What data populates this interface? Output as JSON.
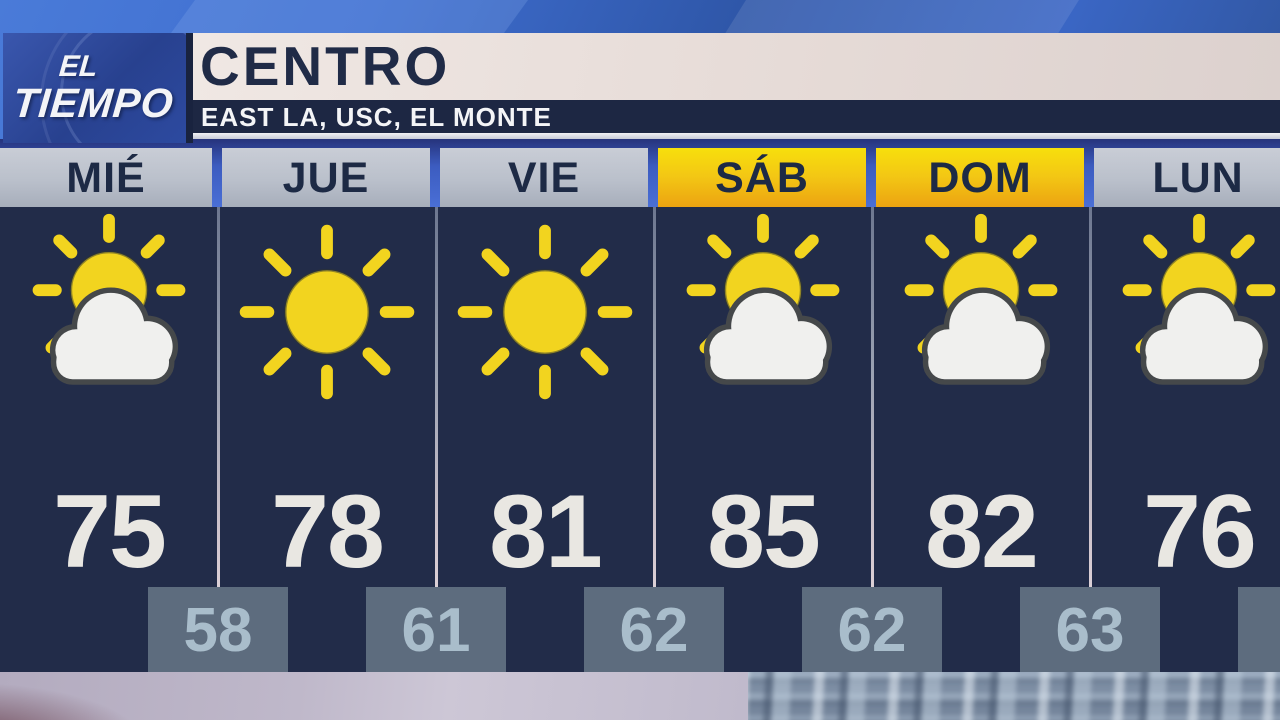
{
  "header": {
    "logo_line1": "EL",
    "logo_line2": "TIEMPO",
    "title": "CENTRO",
    "subtitle": "EAST LA, USC, EL MONTE"
  },
  "forecast": {
    "days": [
      {
        "label": "MIÉ",
        "high": "75",
        "icon": "partly-cloudy",
        "weekend": false
      },
      {
        "label": "JUE",
        "high": "78",
        "icon": "sunny",
        "weekend": false
      },
      {
        "label": "VIE",
        "high": "81",
        "icon": "sunny",
        "weekend": false
      },
      {
        "label": "SÁB",
        "high": "85",
        "icon": "partly-cloudy",
        "weekend": true
      },
      {
        "label": "DOM",
        "high": "82",
        "icon": "partly-cloudy",
        "weekend": true
      },
      {
        "label": "LUN",
        "high": "76",
        "icon": "partly-cloudy",
        "weekend": false
      }
    ],
    "lows": [
      "58",
      "61",
      "62",
      "62",
      "63"
    ]
  },
  "colors": {
    "panel_navy": "#222c49",
    "weekday_header_gray": "#bcc2cd",
    "weekend_header_yellow": "#f3c714",
    "sun_yellow": "#f2d41f",
    "low_box_gray": "#5d6c7e",
    "low_text": "#a9bdcb",
    "high_text": "#e9e7e2",
    "title_navy": "#202b47",
    "header_blue": "#3c5cc0",
    "title_bar_bg": "#e6dbd7"
  },
  "chart_data": {
    "type": "table",
    "title": "CENTRO",
    "subtitle": "EAST LA, USC, EL MONTE",
    "categories": [
      "MIÉ",
      "JUE",
      "VIE",
      "SÁB",
      "DOM",
      "LUN"
    ],
    "series": [
      {
        "name": "high_temp_f",
        "values": [
          75,
          78,
          81,
          85,
          82,
          76
        ]
      },
      {
        "name": "overnight_low_f",
        "values": [
          58,
          61,
          62,
          62,
          63
        ]
      }
    ],
    "conditions": [
      "partly-cloudy",
      "sunny",
      "sunny",
      "partly-cloudy",
      "partly-cloudy",
      "partly-cloudy"
    ],
    "notes": "Overnight lows shown in gray boxes straddling the boundary between consecutive day columns; weekend days (SÁB, DOM) have yellow headers."
  }
}
